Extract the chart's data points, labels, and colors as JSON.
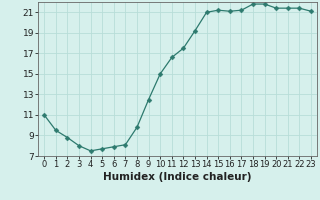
{
  "x": [
    0,
    1,
    2,
    3,
    4,
    5,
    6,
    7,
    8,
    9,
    10,
    11,
    12,
    13,
    14,
    15,
    16,
    17,
    18,
    19,
    20,
    21,
    22,
    23
  ],
  "y": [
    11.0,
    9.5,
    8.8,
    8.0,
    7.5,
    7.7,
    7.9,
    8.1,
    9.8,
    12.5,
    15.0,
    16.6,
    17.5,
    19.2,
    21.0,
    21.2,
    21.1,
    21.2,
    21.8,
    21.8,
    21.4,
    21.4,
    21.4,
    21.1
  ],
  "line_color": "#2d7a6e",
  "marker": "D",
  "marker_size": 2.5,
  "bg_color": "#d6f0ec",
  "grid_color": "#b8ddd8",
  "xlabel": "Humidex (Indice chaleur)",
  "xlim": [
    -0.5,
    23.5
  ],
  "ylim": [
    7,
    22
  ],
  "yticks": [
    7,
    9,
    11,
    13,
    15,
    17,
    19,
    21
  ],
  "xtick_labels": [
    "0",
    "1",
    "2",
    "3",
    "4",
    "5",
    "6",
    "7",
    "8",
    "9",
    "10",
    "11",
    "12",
    "13",
    "14",
    "15",
    "16",
    "17",
    "18",
    "19",
    "20",
    "21",
    "22",
    "23"
  ],
  "xlabel_fontsize": 7.5,
  "tick_fontsize": 6.5
}
